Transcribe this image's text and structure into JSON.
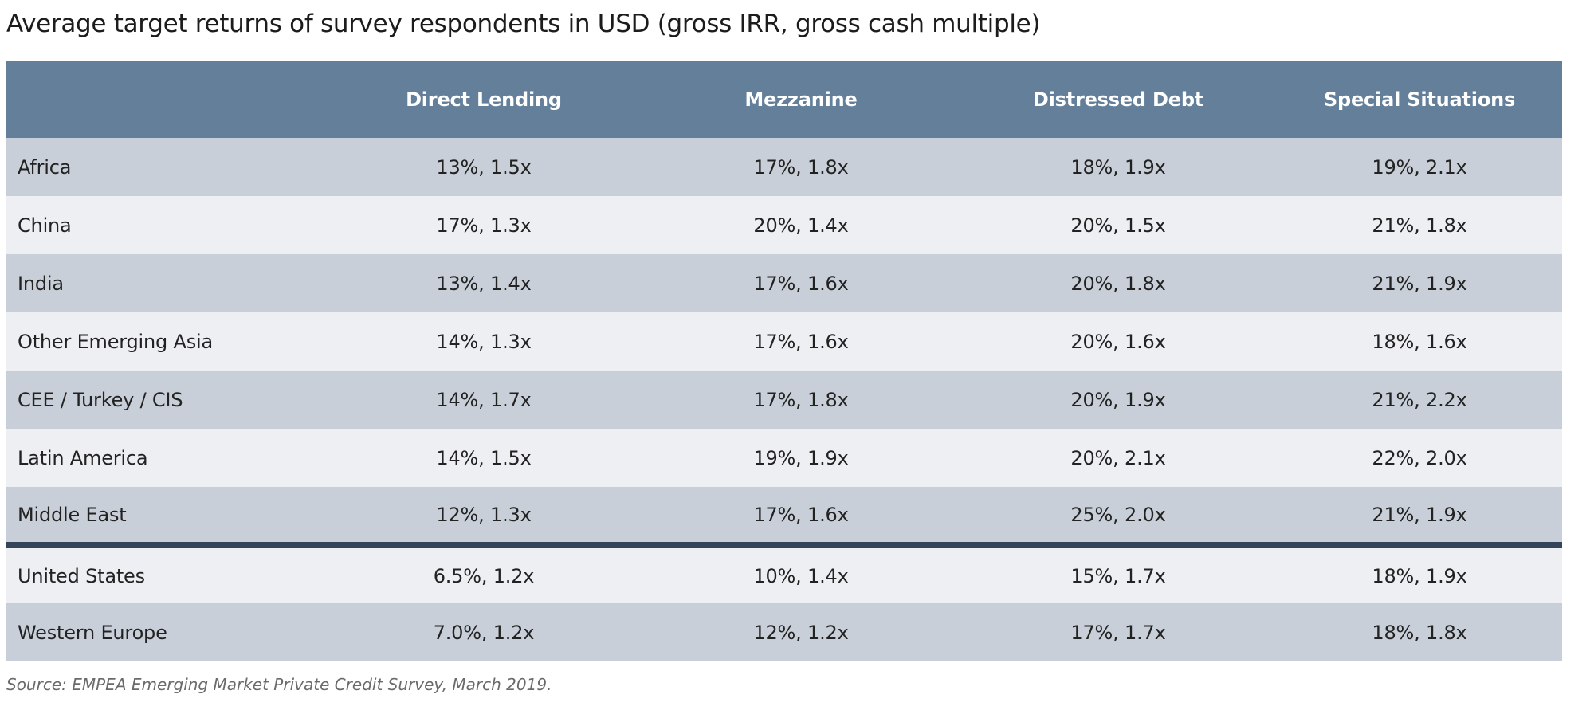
{
  "title": "Average target returns of survey respondents in USD (gross IRR, gross cash multiple)",
  "table": {
    "headers": [
      "",
      "Direct Lending",
      "Mezzanine",
      "Distressed Debt",
      "Special Situations"
    ],
    "rows": [
      {
        "region": "Africa",
        "values": [
          "13%, 1.5x",
          "17%, 1.8x",
          "18%, 1.9x",
          "19%, 2.1x"
        ]
      },
      {
        "region": "China",
        "values": [
          "17%, 1.3x",
          "20%, 1.4x",
          "20%, 1.5x",
          "21%, 1.8x"
        ]
      },
      {
        "region": "India",
        "values": [
          "13%, 1.4x",
          "17%, 1.6x",
          "20%, 1.8x",
          "21%, 1.9x"
        ]
      },
      {
        "region": "Other Emerging Asia",
        "values": [
          "14%, 1.3x",
          "17%, 1.6x",
          "20%, 1.6x",
          "18%, 1.6x"
        ]
      },
      {
        "region": "CEE / Turkey / CIS",
        "values": [
          "14%, 1.7x",
          "17%, 1.8x",
          "20%, 1.9x",
          "21%, 2.2x"
        ]
      },
      {
        "region": "Latin America",
        "values": [
          "14%, 1.5x",
          "19%, 1.9x",
          "20%, 2.1x",
          "22%, 2.0x"
        ]
      },
      {
        "region": "Middle East",
        "values": [
          "12%, 1.3x",
          "17%, 1.6x",
          "25%, 2.0x",
          "21%, 1.9x"
        ]
      },
      {
        "region": "United States",
        "values": [
          "6.5%, 1.2x",
          "10%, 1.4x",
          "15%, 1.7x",
          "18%, 1.9x"
        ]
      },
      {
        "region": "Western Europe",
        "values": [
          "7.0%, 1.2x",
          "12%, 1.2x",
          "17%, 1.7x",
          "18%, 1.8x"
        ]
      }
    ]
  },
  "colors": {
    "header_bg": "#647f9a",
    "row_shaded": "#c8cfd8",
    "row_light": "#eeeff2",
    "divider": "#34455b"
  },
  "source": "Source: EMPEA Emerging Market Private Credit Survey, March 2019."
}
